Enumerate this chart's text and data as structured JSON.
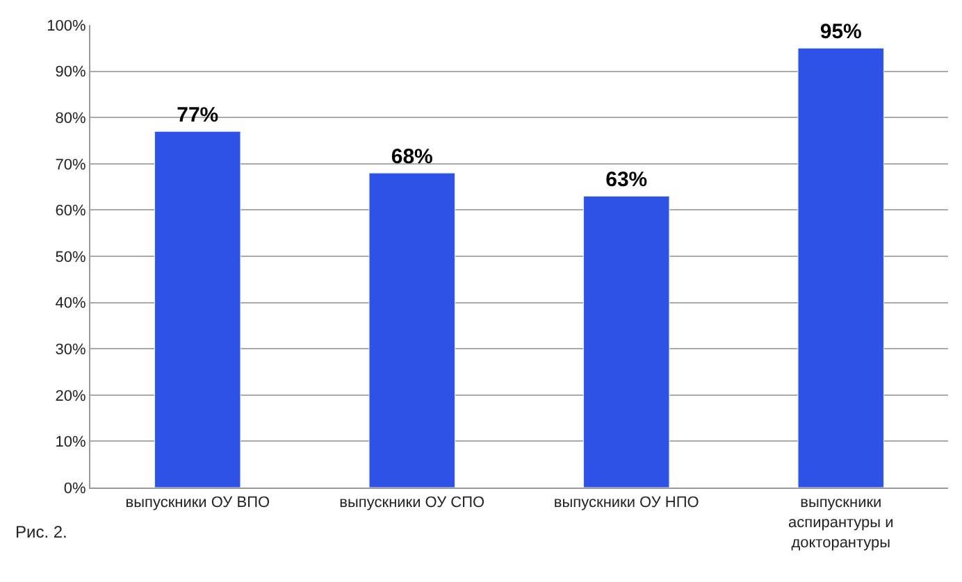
{
  "chart_data": {
    "type": "bar",
    "categories": [
      "выпускники ОУ ВПО",
      "выпускники ОУ СПО",
      "выпускники ОУ НПО",
      "выпускники\nаспирантуры и\nдокторантуры"
    ],
    "values": [
      77,
      68,
      63,
      95
    ],
    "color": "#2e52e6",
    "value_labels": [
      "77%",
      "68%",
      "63%",
      "95%"
    ],
    "ylim": [
      0,
      100
    ],
    "yticks": [
      {
        "value": 0,
        "label": "0%"
      },
      {
        "value": 10,
        "label": "10%"
      },
      {
        "value": 20,
        "label": "20%"
      },
      {
        "value": 30,
        "label": "30%"
      },
      {
        "value": 40,
        "label": "40%"
      },
      {
        "value": 50,
        "label": "50%"
      },
      {
        "value": 60,
        "label": "60%"
      },
      {
        "value": 70,
        "label": "70%"
      },
      {
        "value": 80,
        "label": "80%"
      },
      {
        "value": 90,
        "label": "90%"
      },
      {
        "value": 100,
        "label": "100%"
      }
    ],
    "grid": "y",
    "legend": false,
    "annotations": [
      "Рис. 2."
    ]
  }
}
